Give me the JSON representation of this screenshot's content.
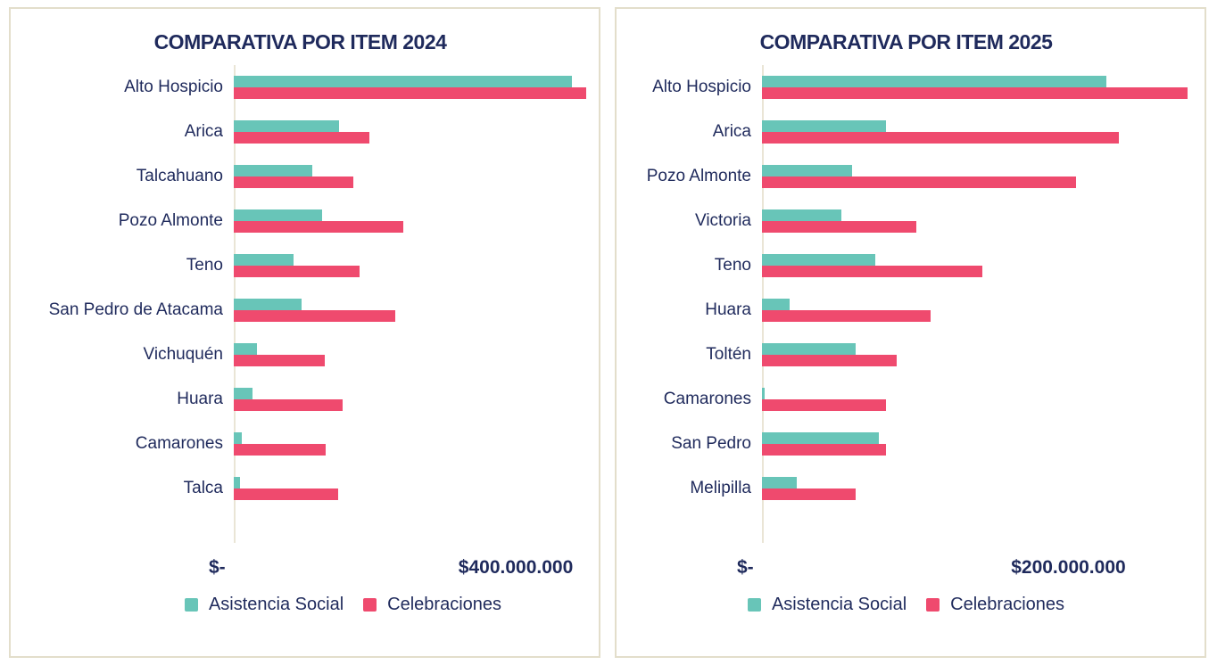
{
  "colors": {
    "asistencia_social": "#68C5B8",
    "celebraciones": "#EF4A6E",
    "text_navy": "#1F2A5C",
    "panel_border": "#E3DECB",
    "axis_line": "#EAE5D6",
    "background": "#FFFFFF"
  },
  "chart_data": [
    {
      "type": "bar",
      "orientation": "horizontal",
      "title": "COMPARATIVA POR ITEM 2024",
      "categories": [
        "Alto Hospicio",
        "Arica",
        "Talcahuano",
        "Pozo Almonte",
        "Teno",
        "San Pedro de Atacama",
        "Vichuquén",
        "Huara",
        "Camarones",
        "Talca"
      ],
      "series": [
        {
          "name": "Asistencia Social",
          "color": "#68C5B8",
          "values": [
            480000000,
            149000000,
            112000000,
            125000000,
            85000000,
            96000000,
            33000000,
            27000000,
            11000000,
            9000000
          ]
        },
        {
          "name": "Celebraciones",
          "color": "#EF4A6E",
          "values": [
            500000000,
            192000000,
            169000000,
            240000000,
            179000000,
            229000000,
            129000000,
            154000000,
            130000000,
            148000000
          ]
        }
      ],
      "x_ticks": [
        {
          "label": "$-",
          "value": 0
        },
        {
          "label": "$400.000.000",
          "value": 400000000
        }
      ],
      "xlim": [
        0,
        505000000
      ],
      "xlabel": "",
      "ylabel": "",
      "grid": false,
      "legend_position": "bottom"
    },
    {
      "type": "bar",
      "orientation": "horizontal",
      "title": "COMPARATIVA POR ITEM 2025",
      "categories": [
        "Alto Hospicio",
        "Arica",
        "Pozo Almonte",
        "Victoria",
        "Teno",
        "Huara",
        "Toltén",
        "Camarones",
        "San Pedro",
        "Melipilla"
      ],
      "series": [
        {
          "name": "Asistencia Social",
          "color": "#68C5B8",
          "values": [
            225000000,
            81000000,
            59000000,
            52000000,
            74000000,
            18000000,
            61000000,
            1500000,
            76000000,
            23000000
          ]
        },
        {
          "name": "Celebraciones",
          "color": "#EF4A6E",
          "values": [
            278000000,
            233000000,
            205000000,
            101000000,
            144000000,
            110000000,
            88000000,
            81000000,
            81000000,
            61000000
          ]
        }
      ],
      "x_ticks": [
        {
          "label": "$-",
          "value": 0
        },
        {
          "label": "$200.000.000",
          "value": 200000000
        }
      ],
      "xlim": [
        0,
        283000000
      ],
      "xlabel": "",
      "ylabel": "",
      "grid": false,
      "legend_position": "bottom"
    }
  ]
}
